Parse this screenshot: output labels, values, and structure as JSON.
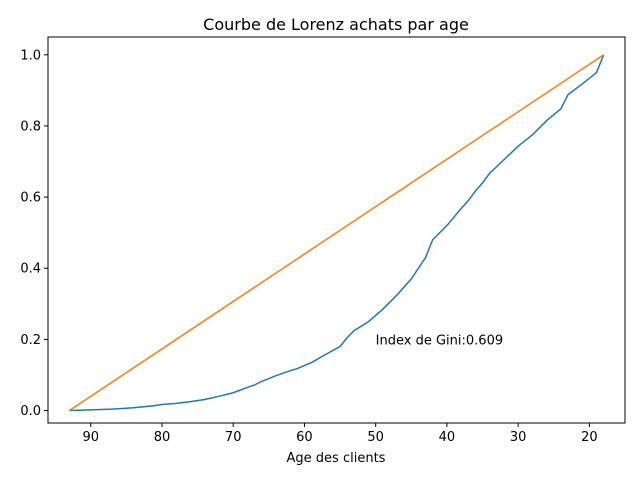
{
  "chart_data": {
    "type": "line",
    "title": "Courbe de Lorenz achats par age",
    "xlabel": "Age des clients",
    "ylabel": "",
    "xlim": [
      96,
      15
    ],
    "ylim": [
      -0.035,
      1.05
    ],
    "x_inverted": true,
    "grid": false,
    "xticks": [
      90,
      80,
      70,
      60,
      50,
      40,
      30,
      20
    ],
    "xtick_labels": [
      "90",
      "80",
      "70",
      "60",
      "50",
      "40",
      "30",
      "20"
    ],
    "yticks": [
      0.0,
      0.2,
      0.4,
      0.6,
      0.8,
      1.0
    ],
    "ytick_labels": [
      "0.0",
      "0.2",
      "0.4",
      "0.6",
      "0.8",
      "1.0"
    ],
    "series": [
      {
        "color": "#1f77b4",
        "x": [
          93,
          90,
          87,
          84,
          81,
          80,
          78,
          76,
          74,
          72,
          70,
          68,
          67,
          66,
          64,
          62,
          61,
          59,
          57,
          55,
          54,
          53,
          51,
          49,
          47,
          45,
          43,
          42,
          40,
          38,
          37,
          36,
          35,
          34,
          32,
          30,
          28,
          26,
          24,
          23,
          21,
          19,
          18
        ],
        "y": [
          0.0,
          0.002,
          0.004,
          0.008,
          0.014,
          0.017,
          0.02,
          0.025,
          0.031,
          0.04,
          0.05,
          0.065,
          0.072,
          0.082,
          0.098,
          0.112,
          0.118,
          0.135,
          0.158,
          0.18,
          0.205,
          0.225,
          0.25,
          0.285,
          0.325,
          0.37,
          0.43,
          0.48,
          0.52,
          0.568,
          0.59,
          0.617,
          0.64,
          0.667,
          0.705,
          0.743,
          0.775,
          0.815,
          0.848,
          0.888,
          0.918,
          0.95,
          1.0
        ]
      },
      {
        "color": "#ff7f0e",
        "x": [
          93,
          18
        ],
        "y": [
          0.0,
          1.0
        ]
      }
    ],
    "annotation": {
      "text": "Index de Gini:0.609",
      "x": 50,
      "y": 0.2
    }
  }
}
